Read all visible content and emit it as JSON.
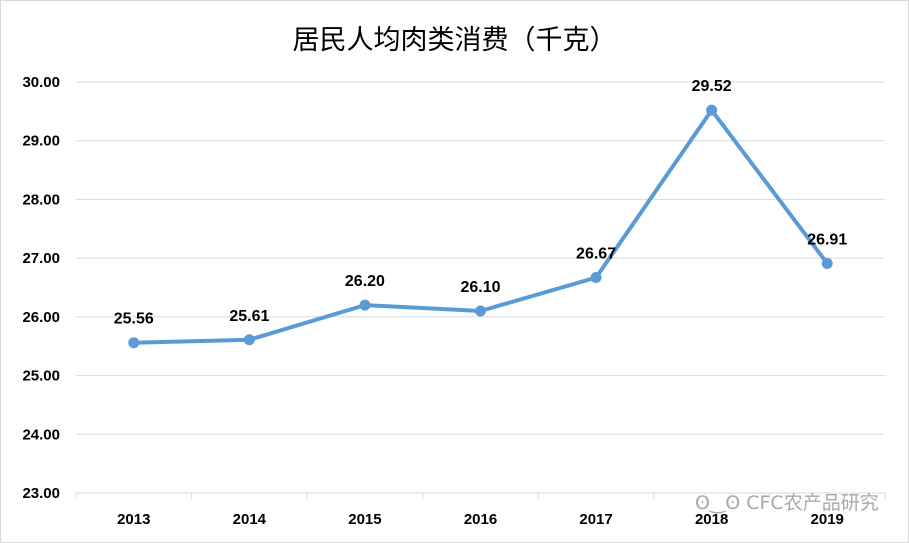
{
  "chart_data": {
    "type": "line",
    "title": "居民人均肉类消费（千克）",
    "categories": [
      "2013",
      "2014",
      "2015",
      "2016",
      "2017",
      "2018",
      "2019"
    ],
    "series": [
      {
        "values": [
          25.56,
          25.61,
          26.2,
          26.1,
          26.67,
          29.52,
          26.91
        ]
      }
    ],
    "data_labels": [
      "25.56",
      "25.61",
      "26.20",
      "26.10",
      "26.67",
      "29.52",
      "26.91"
    ],
    "y_ticks": [
      "23.00",
      "24.00",
      "25.00",
      "26.00",
      "27.00",
      "28.00",
      "29.00",
      "30.00"
    ],
    "ylim": [
      23,
      30
    ],
    "grid": true,
    "line_color": "#5b9bd5",
    "grid_color": "#d9d9d9"
  },
  "watermark": "CFC农产品研究"
}
